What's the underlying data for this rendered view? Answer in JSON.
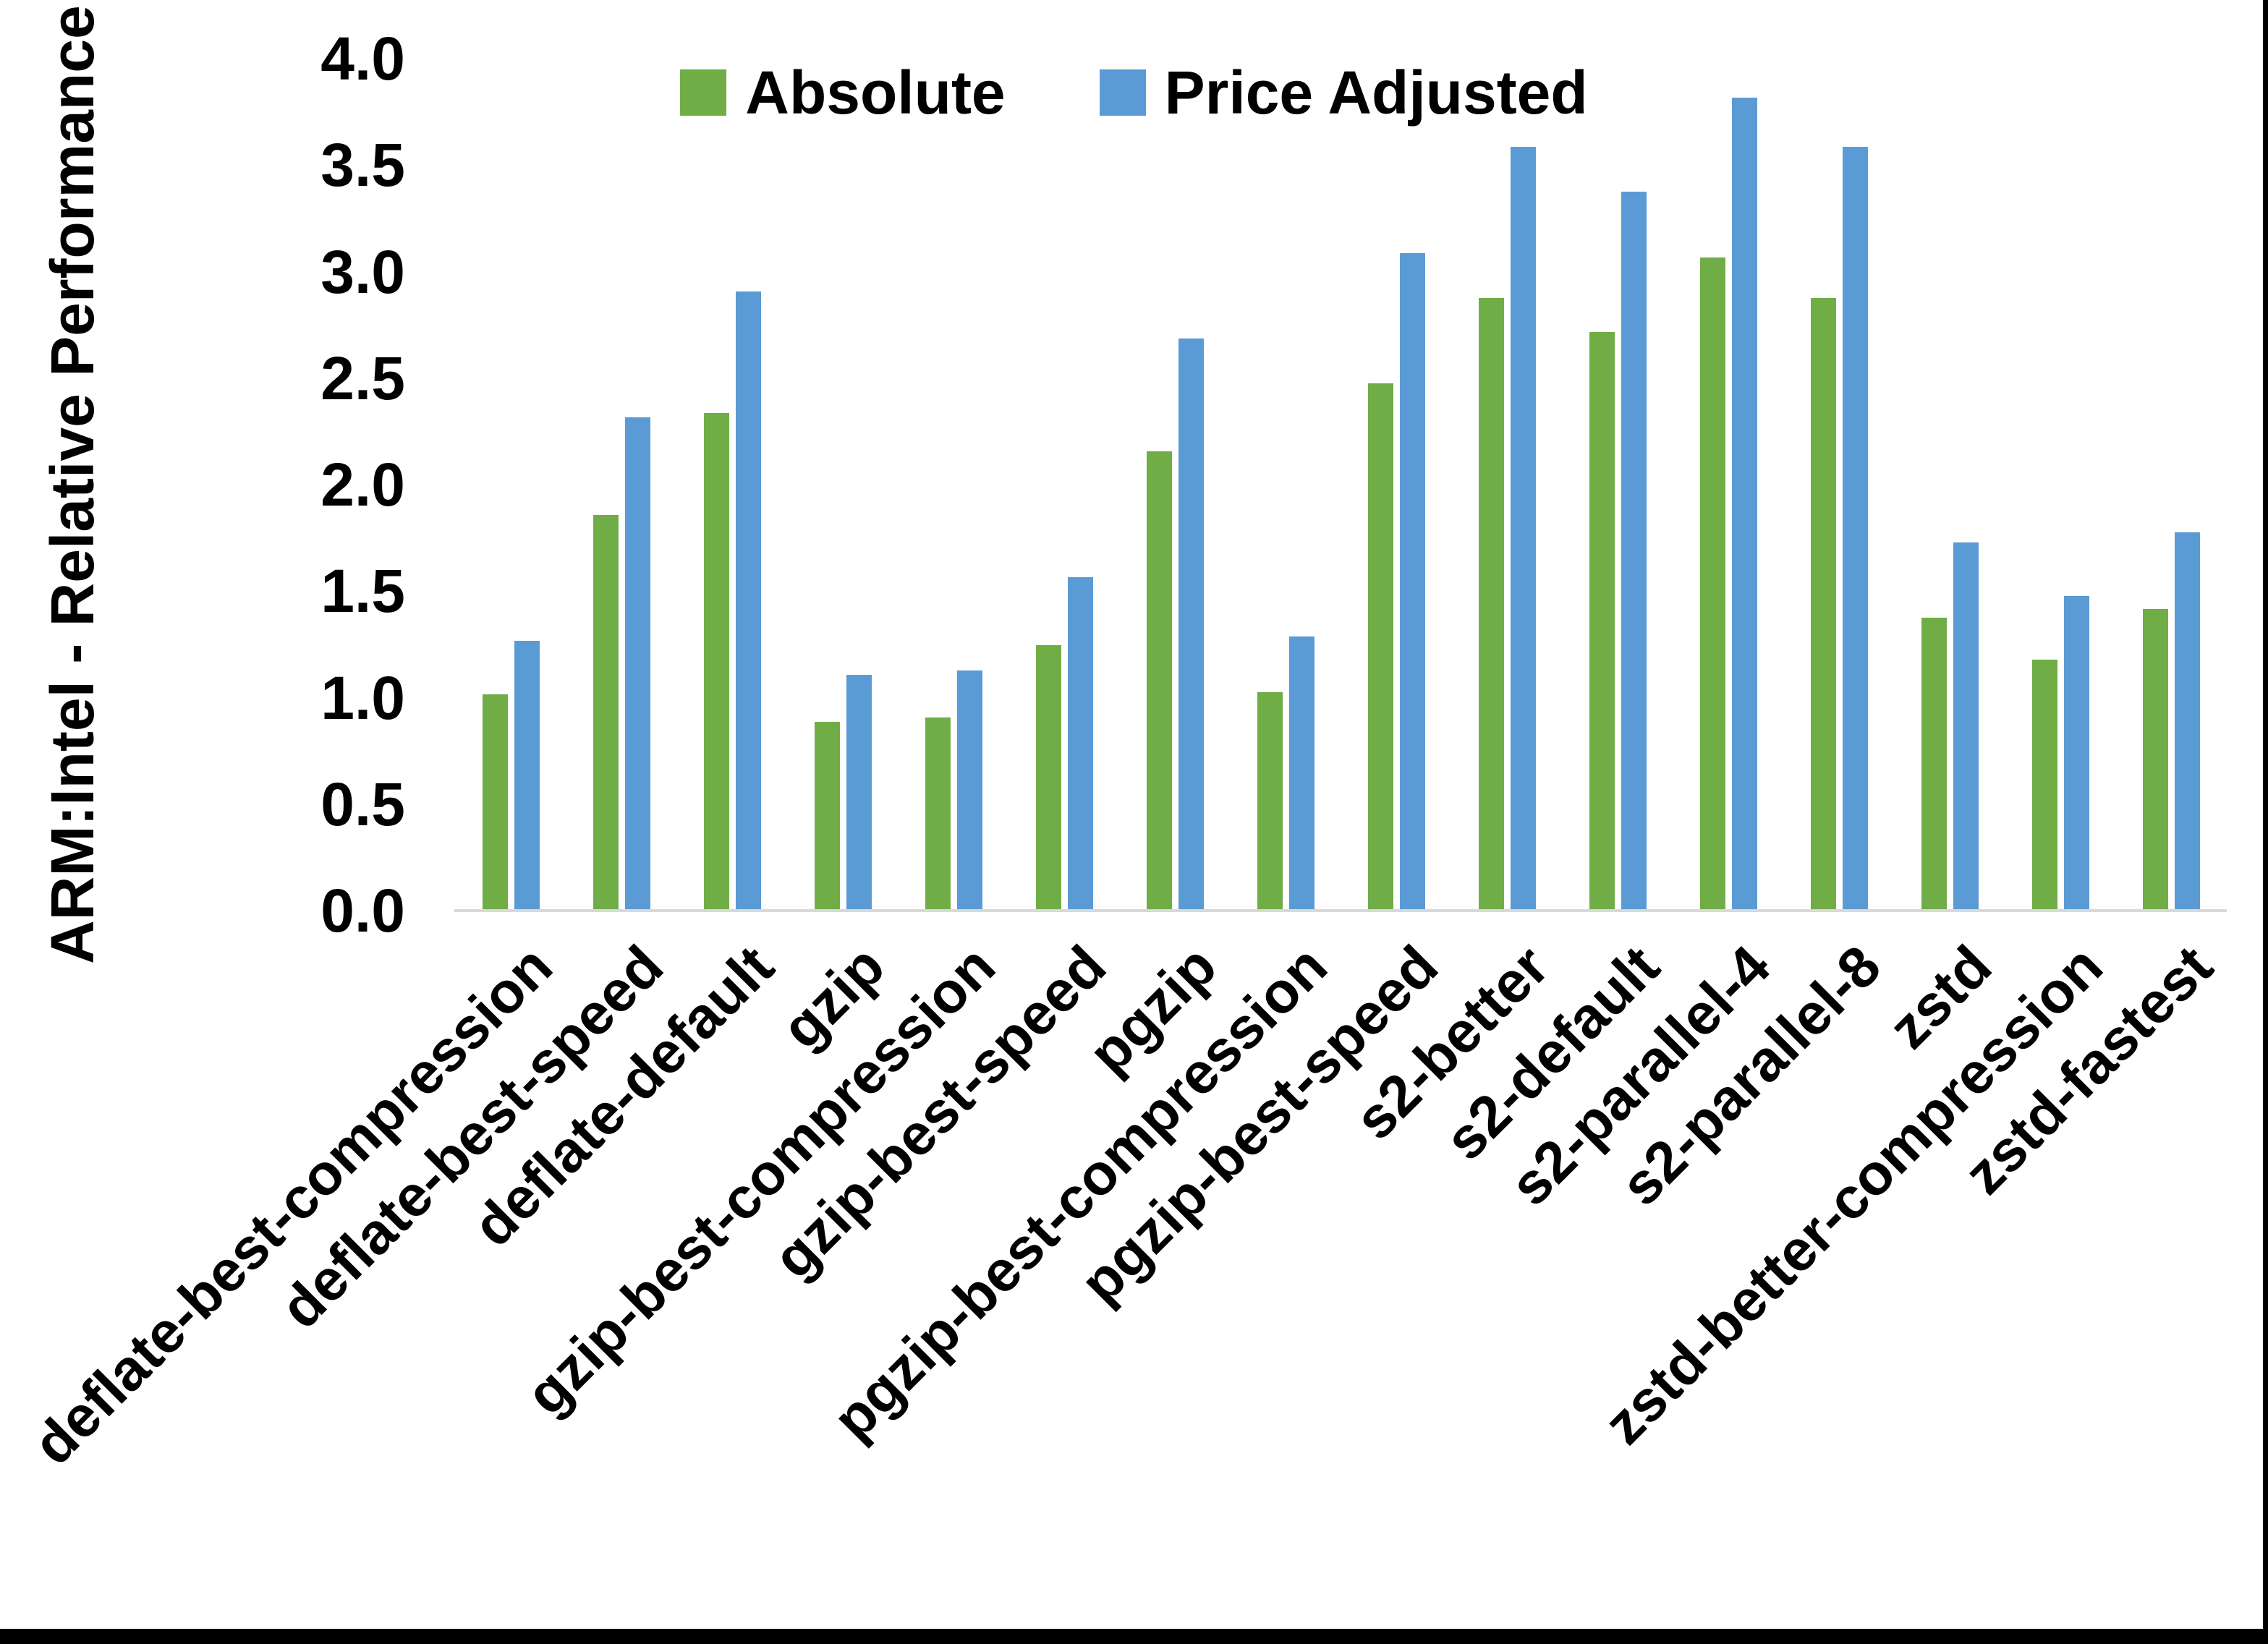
{
  "chart_data": {
    "type": "bar",
    "title": "",
    "ylabel": "ARM:Intel - Relative Performance",
    "xlabel": "",
    "ylim": [
      0,
      4
    ],
    "ytick_step": 0.5,
    "yticks": [
      "0.0",
      "0.5",
      "1.0",
      "1.5",
      "2.0",
      "2.5",
      "3.0",
      "3.5",
      "4.0"
    ],
    "grid": false,
    "legend_position": "top-center",
    "categories": [
      "deflate-best-compression",
      "deflate-best-speed",
      "deflate-default",
      "gzip",
      "gzip-best-compression",
      "gzip-best-speed",
      "pgzip",
      "pgzip-best-compression",
      "pgzip-best-speed",
      "s2-better",
      "s2-default",
      "s2-parallel-4",
      "s2-parallel-8",
      "zstd",
      "zstd-better-compression",
      "zstd-fastest"
    ],
    "series": [
      {
        "name": "Absolute",
        "color": "#70AD47",
        "values": [
          1.01,
          1.85,
          2.33,
          0.88,
          0.9,
          1.24,
          2.15,
          1.02,
          2.47,
          2.87,
          2.71,
          3.06,
          2.87,
          1.37,
          1.17,
          1.41
        ]
      },
      {
        "name": "Price Adjusted",
        "color": "#5B9BD5",
        "values": [
          1.26,
          2.31,
          2.9,
          1.1,
          1.12,
          1.56,
          2.68,
          1.28,
          3.08,
          3.58,
          3.37,
          3.81,
          3.58,
          1.72,
          1.47,
          1.77
        ]
      }
    ],
    "axis_line_color": "#d9d9d9",
    "text_color": "#000000"
  },
  "frame": {
    "right_border_color": "#000000",
    "bottom_border_color": "#000000"
  }
}
